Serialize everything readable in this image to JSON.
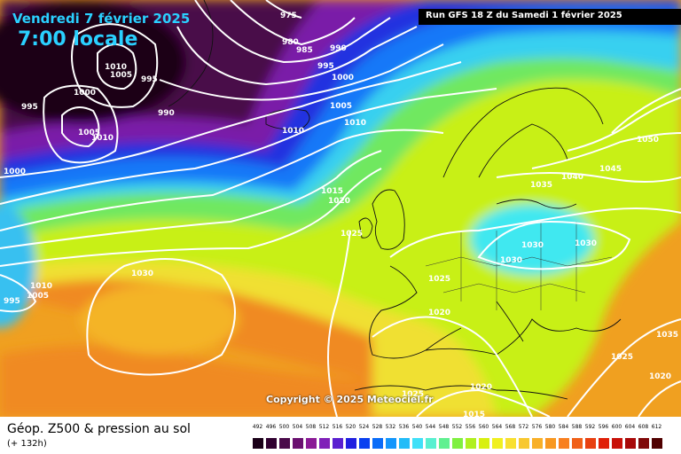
{
  "header": {
    "date": "Vendredi 7 février 2025",
    "time": "7:00 locale",
    "run": "Run GFS 18 Z du Samedi 1 février 2025"
  },
  "copyright": "Copyright © 2025 Meteociel.fr",
  "footer": {
    "title": "Géop. Z500 & pression au sol",
    "subtitle": "(+ 132h)"
  },
  "legend": {
    "scale_values": [
      "492",
      "496",
      "500",
      "504",
      "508",
      "512",
      "516",
      "520",
      "524",
      "528",
      "532",
      "536",
      "540",
      "544",
      "548",
      "552",
      "556",
      "560",
      "564",
      "568",
      "572",
      "576",
      "580",
      "584",
      "588",
      "592",
      "596",
      "600",
      "604",
      "608",
      "612"
    ],
    "colors": [
      "#1a0018",
      "#300030",
      "#4a0a4a",
      "#6a1070",
      "#8a1a96",
      "#8020b8",
      "#5a20d0",
      "#2020e0",
      "#0a40f0",
      "#0a6cf8",
      "#1296fc",
      "#22bcf8",
      "#40e0f8",
      "#58f0d0",
      "#60f090",
      "#80f040",
      "#b0f020",
      "#d8f010",
      "#f0f020",
      "#f8e030",
      "#f8c830",
      "#f8b028",
      "#f89820",
      "#f88020",
      "#f06018",
      "#e84010",
      "#e02008",
      "#c81008",
      "#a80808",
      "#800808",
      "#500000"
    ]
  },
  "map": {
    "isobar_labels": [
      "975",
      "980",
      "985",
      "990",
      "995",
      "1000",
      "1005",
      "1010",
      "995",
      "1000",
      "995",
      "1010",
      "990",
      "1000",
      "1005",
      "1010",
      "1005",
      "1010",
      "1015",
      "1020",
      "1025",
      "1050",
      "1045",
      "1035",
      "1040",
      "1030",
      "1030",
      "1030",
      "1025",
      "1030",
      "1020",
      "1035",
      "1025",
      "1020",
      "1025",
      "1015",
      "1020",
      "995",
      "1010",
      "1005",
      "1000"
    ]
  }
}
